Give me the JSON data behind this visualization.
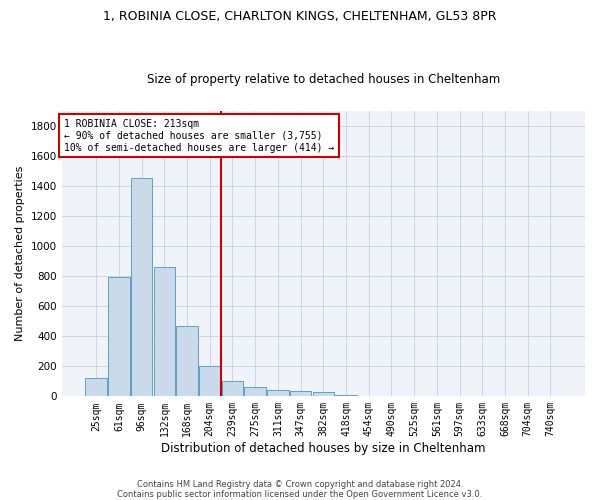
{
  "title_line1": "1, ROBINIA CLOSE, CHARLTON KINGS, CHELTENHAM, GL53 8PR",
  "title_line2": "Size of property relative to detached houses in Cheltenham",
  "xlabel": "Distribution of detached houses by size in Cheltenham",
  "ylabel": "Number of detached properties",
  "footer_line1": "Contains HM Land Registry data © Crown copyright and database right 2024.",
  "footer_line2": "Contains public sector information licensed under the Open Government Licence v3.0.",
  "annotation_line1": "1 ROBINIA CLOSE: 213sqm",
  "annotation_line2": "← 90% of detached houses are smaller (3,755)",
  "annotation_line3": "10% of semi-detached houses are larger (414) →",
  "bar_labels": [
    "25sqm",
    "61sqm",
    "96sqm",
    "132sqm",
    "168sqm",
    "204sqm",
    "239sqm",
    "275sqm",
    "311sqm",
    "347sqm",
    "382sqm",
    "418sqm",
    "454sqm",
    "490sqm",
    "525sqm",
    "561sqm",
    "597sqm",
    "633sqm",
    "668sqm",
    "704sqm",
    "740sqm"
  ],
  "bar_values": [
    120,
    795,
    1455,
    860,
    470,
    200,
    100,
    65,
    42,
    35,
    28,
    10,
    0,
    0,
    0,
    0,
    0,
    0,
    0,
    0,
    0
  ],
  "bar_color": "#c9daea",
  "bar_edge_color": "#5a9fc8",
  "vline_x": 5.5,
  "vline_color": "#cc0000",
  "ylim": [
    0,
    1900
  ],
  "yticks": [
    0,
    200,
    400,
    600,
    800,
    1000,
    1200,
    1400,
    1600,
    1800
  ],
  "annotation_box_color": "#ffffff",
  "annotation_box_edge": "#cc0000",
  "background_color": "#f0f4fa",
  "grid_color": "#c8d0dc",
  "title1_fontsize": 9,
  "title2_fontsize": 8.5,
  "ylabel_fontsize": 8,
  "xlabel_fontsize": 8.5,
  "tick_fontsize": 7,
  "ann_fontsize": 7,
  "footer_fontsize": 6
}
